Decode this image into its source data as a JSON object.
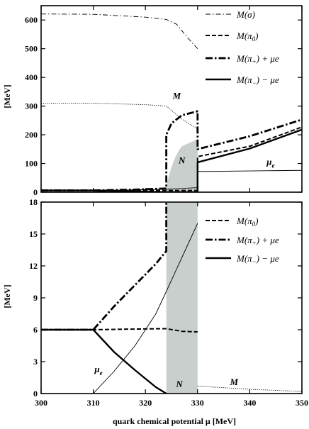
{
  "chart_data": [
    {
      "type": "line",
      "xlim": [
        300,
        350
      ],
      "ylim": [
        0,
        650
      ],
      "ylabel": "[MeV]",
      "yticks": [
        0,
        100,
        200,
        300,
        400,
        500,
        600
      ],
      "series": [
        {
          "name": "M(σ)",
          "style": "dashdot-thin",
          "points": [
            [
              300,
              621
            ],
            [
              310,
              620
            ],
            [
              320,
              610
            ],
            [
              324,
              602
            ],
            [
              326,
              585
            ],
            [
              328,
              540
            ],
            [
              330,
              500
            ]
          ]
        },
        {
          "name": "M(π₀)",
          "style": "dashed",
          "points": [
            [
              300,
              6
            ],
            [
              310,
              6
            ],
            [
              324,
              6
            ],
            [
              330,
              6
            ],
            [
              330,
              124
            ],
            [
              340,
              160
            ],
            [
              350,
              227
            ]
          ]
        },
        {
          "name": "M(π₊) + μe",
          "style": "dashdot-thick",
          "points": [
            [
              300,
              6
            ],
            [
              310,
              6
            ],
            [
              318,
              9
            ],
            [
              324,
              13
            ],
            [
              324,
              200
            ],
            [
              325,
              240
            ],
            [
              327,
              268
            ],
            [
              330,
              282
            ],
            [
              330,
              150
            ],
            [
              340,
              195
            ],
            [
              350,
              253
            ]
          ]
        },
        {
          "name": "M(π₋) − μe",
          "style": "solid",
          "points": [
            [
              300,
              6
            ],
            [
              310,
              6
            ],
            [
              324,
              0
            ],
            [
              330,
              0
            ],
            [
              330,
              104
            ],
            [
              340,
              152
            ],
            [
              350,
              218
            ]
          ]
        },
        {
          "name": "M",
          "style": "dotted",
          "points": [
            [
              300,
              310
            ],
            [
              310,
              310
            ],
            [
              320,
              305
            ],
            [
              324,
              300
            ],
            [
              327,
              255
            ],
            [
              330,
              220
            ]
          ]
        },
        {
          "name": "μe",
          "style": "solid-thin",
          "points": [
            [
              300,
              0
            ],
            [
              310,
              0
            ],
            [
              317,
              8
            ],
            [
              324,
              10
            ],
            [
              330,
              16
            ],
            [
              330,
              72
            ],
            [
              340,
              74
            ],
            [
              350,
              76
            ]
          ]
        }
      ],
      "annotations": [
        {
          "text": "M",
          "x": 326,
          "y": 325
        },
        {
          "text": "N",
          "x": 327,
          "y": 100
        },
        {
          "text": "μe",
          "x": 344,
          "y": 95
        }
      ],
      "shaded_region": {
        "label": "N",
        "x": [
          324,
          330
        ]
      }
    },
    {
      "type": "line",
      "xlim": [
        300,
        350
      ],
      "ylim": [
        0,
        18
      ],
      "xlabel": "quark chemical potential μ [MeV]",
      "ylabel": "[MeV]",
      "xticks": [
        300,
        310,
        320,
        330,
        340,
        350
      ],
      "yticks": [
        0,
        3,
        6,
        9,
        12,
        15,
        18
      ],
      "series": [
        {
          "name": "M(π₀)",
          "style": "dashed",
          "points": [
            [
              300,
              6
            ],
            [
              310,
              6
            ],
            [
              316,
              6.05
            ],
            [
              324,
              6.1
            ],
            [
              327,
              5.85
            ],
            [
              330,
              5.8
            ]
          ]
        },
        {
          "name": "M(π₊) + μe",
          "style": "dashdot-thick",
          "points": [
            [
              300,
              6
            ],
            [
              310,
              6
            ],
            [
              314,
              8.2
            ],
            [
              318,
              10.2
            ],
            [
              322,
              12.2
            ],
            [
              324,
              13.4
            ],
            [
              324,
              18
            ]
          ]
        },
        {
          "name": "M(π₋) − μe",
          "style": "solid",
          "points": [
            [
              300,
              6
            ],
            [
              310,
              6
            ],
            [
              314,
              3.9
            ],
            [
              318,
              2.2
            ],
            [
              322,
              0.6
            ],
            [
              324,
              0
            ]
          ]
        },
        {
          "name": "μe",
          "style": "solid-thin",
          "points": [
            [
              310,
              0
            ],
            [
              314,
              2.1
            ],
            [
              318,
              4.5
            ],
            [
              322,
              7.5
            ],
            [
              324,
              9.6
            ],
            [
              327,
              12.8
            ],
            [
              330,
              16
            ]
          ]
        },
        {
          "name": "M",
          "style": "dotted",
          "points": [
            [
              330,
              0.7
            ],
            [
              335,
              0.55
            ],
            [
              340,
              0.4
            ],
            [
              345,
              0.3
            ],
            [
              350,
              0.2
            ]
          ]
        }
      ],
      "annotations": [
        {
          "text": "μe",
          "x": 311,
          "y": 2.0
        },
        {
          "text": "N",
          "x": 326.5,
          "y": 0.6
        },
        {
          "text": "M",
          "x": 337,
          "y": 0.8
        }
      ],
      "shaded_region": {
        "label": "N",
        "x": [
          324,
          330
        ]
      }
    }
  ]
}
